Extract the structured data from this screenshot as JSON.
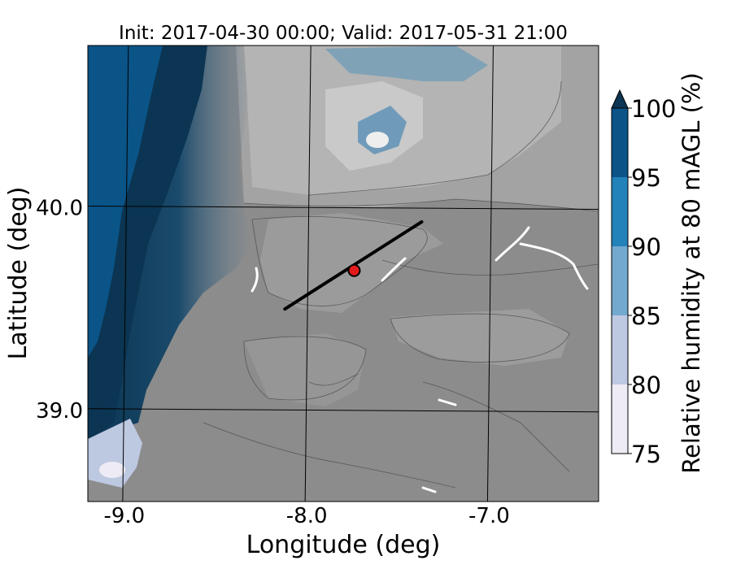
{
  "title": "Init: 2017-04-30 00:00; Valid: 2017-05-31 21:00",
  "xlabel": "Longitude (deg)",
  "ylabel": "Latitude (deg)",
  "lon_ticks": [
    "-9.0",
    "-8.0",
    "-7.0"
  ],
  "lat_ticks": [
    "40.0",
    "39.0"
  ],
  "colorbar": {
    "label": "Relative humidity at 80 mAGL (%)",
    "ticks": [
      "75",
      "80",
      "85",
      "90",
      "95",
      "100"
    ],
    "levels": [
      75,
      80,
      85,
      90,
      95,
      100
    ],
    "colors": [
      "#efebf4",
      "#bdc8e1",
      "#73a9cf",
      "#2382b9",
      "#0a5488",
      "#0b3552"
    ],
    "extend": "max"
  },
  "map": {
    "lon_range": [
      -9.2,
      -6.4
    ],
    "lat_range": [
      38.55,
      40.8
    ],
    "terrain_color": "#8a8a8a",
    "ocean_color": "#0d3a5a",
    "transect": {
      "start": {
        "lon": -8.12,
        "lat": 39.5
      },
      "end": {
        "lon": -7.37,
        "lat": 39.93
      }
    },
    "site": {
      "lon": -7.74,
      "lat": 39.69,
      "color": "#e41a1c"
    }
  }
}
